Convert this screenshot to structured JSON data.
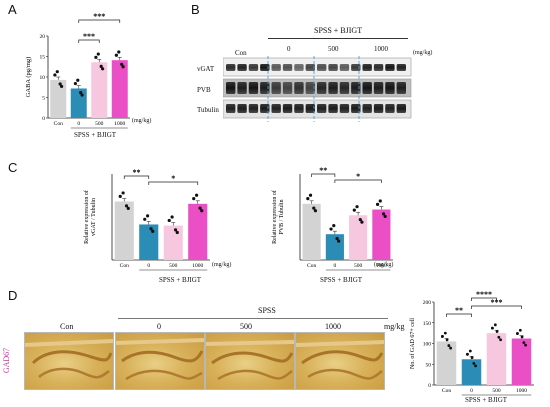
{
  "panels": {
    "a": "A",
    "b": "B",
    "c": "C",
    "d": "D"
  },
  "common": {
    "group_label": "SPSS + BJIGT",
    "spss_label": "SPSS",
    "unit": "(mg/kg)",
    "unit_plain": "mg/kg",
    "dose_labels": [
      "Con",
      "0",
      "500",
      "1000"
    ],
    "bar_colors": [
      "#d3d3d3",
      "#2b8cb5",
      "#f6c7df",
      "#ea4fc6"
    ]
  },
  "panel_a": {
    "ylabel": "GABA (pg/mg)",
    "sig": [
      "***",
      "***"
    ]
  },
  "panel_b": {
    "rows": [
      "vGAT",
      "PVB",
      "Tubulin"
    ]
  },
  "panel_c": {
    "left": {
      "ylabel": "Relative expression of vGAT / Tubulin",
      "sig": [
        "**",
        "*"
      ]
    },
    "right": {
      "ylabel": "Relative expression of PVB / Tubulin",
      "sig": [
        "**",
        "*"
      ]
    }
  },
  "panel_d": {
    "row_label": "GAD67",
    "ylabel": "No. of GAD 67+ cell",
    "sig": [
      "**",
      "****",
      "***"
    ]
  },
  "chart_data": [
    {
      "type": "bar",
      "categories": [
        "Con",
        "0",
        "500",
        "1000"
      ],
      "values": [
        9.3,
        7.2,
        13.6,
        14.1
      ],
      "ylabel": "GABA (pg/mg)",
      "ylim": [
        0,
        20
      ],
      "yticks": [
        0,
        5,
        10,
        15,
        20
      ],
      "significance": [
        {
          "between": [
            "0",
            "500"
          ],
          "label": "***"
        },
        {
          "between": [
            "0",
            "1000"
          ],
          "label": "***"
        }
      ]
    },
    {
      "type": "bar",
      "categories": [
        "Con",
        "0",
        "500",
        "1000"
      ],
      "values": [
        1.02,
        0.62,
        0.6,
        0.98
      ],
      "ylabel": "Relative expression of vGAT / Tubulin",
      "ylim": [
        0,
        1.5
      ],
      "significance": [
        {
          "between": [
            "Con",
            "0"
          ],
          "label": "**"
        },
        {
          "between": [
            "0",
            "1000"
          ],
          "label": "*"
        }
      ]
    },
    {
      "type": "bar",
      "categories": [
        "Con",
        "0",
        "500",
        "1000"
      ],
      "values": [
        0.98,
        0.45,
        0.78,
        0.88
      ],
      "ylabel": "Relative expression of PVB / Tubulin",
      "ylim": [
        0,
        1.5
      ],
      "significance": [
        {
          "between": [
            "Con",
            "0"
          ],
          "label": "**"
        },
        {
          "between": [
            "0",
            "1000"
          ],
          "label": "*"
        }
      ]
    },
    {
      "type": "bar",
      "categories": [
        "Con",
        "0",
        "500",
        "1000"
      ],
      "values": [
        105,
        62,
        125,
        112
      ],
      "ylabel": "No. of GAD 67+ cell",
      "ylim": [
        0,
        200
      ],
      "yticks": [
        0,
        50,
        100,
        150,
        200
      ],
      "significance": [
        {
          "between": [
            "Con",
            "0"
          ],
          "label": "**"
        },
        {
          "between": [
            "0",
            "500"
          ],
          "label": "****"
        },
        {
          "between": [
            "0",
            "1000"
          ],
          "label": "***"
        }
      ]
    }
  ]
}
